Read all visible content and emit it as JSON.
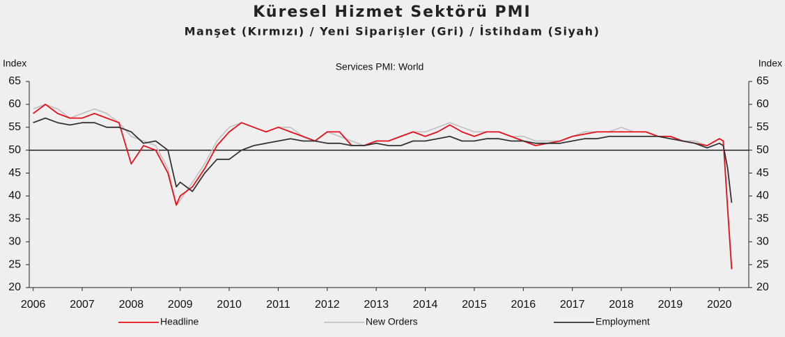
{
  "chart_data": {
    "type": "line",
    "title": "Küresel Hizmet Sektörü PMI",
    "subtitle": "Manşet (Kırmızı) / Yeni Siparişler (Gri) / İstihdam (Siyah)",
    "chart_label": "Services PMI: World",
    "ylabel": "Index",
    "y2label": "Index",
    "x": [
      2006,
      2006.25,
      2006.5,
      2006.75,
      2007,
      2007.25,
      2007.5,
      2007.75,
      2008,
      2008.25,
      2008.5,
      2008.75,
      2008.92,
      2009,
      2009.25,
      2009.5,
      2009.75,
      2010,
      2010.25,
      2010.5,
      2010.75,
      2011,
      2011.25,
      2011.5,
      2011.75,
      2012,
      2012.25,
      2012.5,
      2012.75,
      2013,
      2013.25,
      2013.5,
      2013.75,
      2014,
      2014.25,
      2014.5,
      2014.75,
      2015,
      2015.25,
      2015.5,
      2015.75,
      2016,
      2016.25,
      2016.5,
      2016.75,
      2017,
      2017.25,
      2017.5,
      2017.75,
      2018,
      2018.25,
      2018.5,
      2018.75,
      2019,
      2019.25,
      2019.5,
      2019.75,
      2020,
      2020.08,
      2020.17,
      2020.25
    ],
    "series": [
      {
        "name": "Headline",
        "color": "#e8101a",
        "values": [
          58,
          60,
          58,
          57,
          57,
          58,
          57,
          56,
          47,
          51,
          50,
          45,
          38,
          40,
          42,
          46,
          51,
          54,
          56,
          55,
          54,
          55,
          54,
          53,
          52,
          54,
          54,
          51,
          51,
          52,
          52,
          53,
          54,
          53,
          54,
          55.5,
          54,
          53,
          54,
          54,
          53,
          52,
          51,
          51.5,
          52,
          53,
          53.5,
          54,
          54,
          54,
          54,
          54,
          53,
          53,
          52,
          51.5,
          51,
          52.5,
          52,
          37,
          24
        ]
      },
      {
        "name": "New Orders",
        "color": "#c4c4c4",
        "values": [
          59,
          60,
          59,
          57,
          58,
          59,
          58,
          56,
          53,
          52,
          51,
          46,
          38,
          39,
          43,
          47,
          52,
          55,
          56,
          55,
          54,
          55,
          55,
          53,
          52,
          54,
          53,
          52,
          51,
          52,
          52,
          53,
          54,
          54,
          55,
          56,
          55,
          54,
          54,
          54,
          53,
          53,
          52,
          52,
          52,
          53,
          54,
          54,
          54,
          55,
          54,
          54,
          53,
          53,
          52,
          52,
          51,
          52.5,
          52,
          38,
          25
        ]
      },
      {
        "name": "Employment",
        "color": "#333333",
        "values": [
          56,
          57,
          56,
          55.5,
          56,
          56,
          55,
          55,
          54,
          51.5,
          52,
          50,
          42,
          43,
          41,
          45,
          48,
          48,
          50,
          51,
          51.5,
          52,
          52.5,
          52,
          52,
          51.5,
          51.5,
          51,
          51,
          51.5,
          51,
          51,
          52,
          52,
          52.5,
          53,
          52,
          52,
          52.5,
          52.5,
          52,
          52,
          51.5,
          51.5,
          51.5,
          52,
          52.5,
          52.5,
          53,
          53,
          53,
          53,
          53,
          52.5,
          52,
          51.5,
          50.5,
          51.5,
          51,
          46,
          38.5
        ]
      }
    ],
    "xlim": [
      2005.92,
      2020.6
    ],
    "xticks": [
      2006,
      2007,
      2008,
      2009,
      2010,
      2011,
      2012,
      2013,
      2014,
      2015,
      2016,
      2017,
      2018,
      2019,
      2020
    ],
    "ylim": [
      20,
      65
    ],
    "yticks": [
      20,
      25,
      30,
      35,
      40,
      45,
      50,
      55,
      60,
      65
    ],
    "y2lim": [
      20,
      65
    ],
    "y2ticks": [
      20,
      25,
      30,
      35,
      40,
      45,
      50,
      55,
      60,
      65
    ],
    "reference_line": 50
  }
}
